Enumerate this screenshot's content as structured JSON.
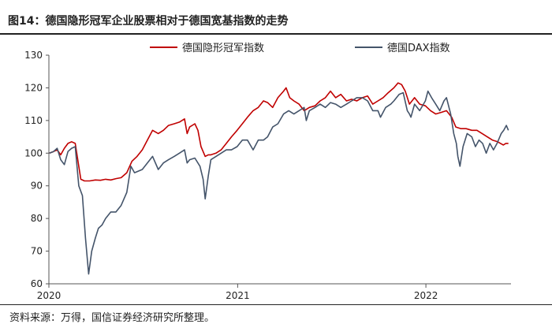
{
  "header": {
    "title": "图14：德国隐形冠军企业股票相对于德国宽基指数的走势"
  },
  "footer": {
    "source": "资料来源：万得，国信证券经济研究所整理。"
  },
  "colors": {
    "series_red": "#c00000",
    "series_dark": "#44546a"
  },
  "chart_data": {
    "type": "line",
    "legend_position": "top",
    "grid": false,
    "x_axis": {
      "type": "date",
      "range": [
        "2020-01-01",
        "2022-06-15"
      ],
      "ticks": [
        {
          "date": "2020-01-01",
          "label": "2020"
        },
        {
          "date": "2021-01-01",
          "label": "2021"
        },
        {
          "date": "2022-01-01",
          "label": "2022"
        }
      ]
    },
    "y_axis": {
      "ylim": [
        60,
        130
      ],
      "ticks": [
        60,
        70,
        80,
        90,
        100,
        110,
        120,
        130
      ]
    },
    "series": [
      {
        "name": "德国隐形冠军指数",
        "color": "#c00000",
        "points": [
          [
            "2020-01-02",
            100
          ],
          [
            "2020-01-10",
            100.5
          ],
          [
            "2020-01-17",
            101
          ],
          [
            "2020-01-24",
            99.5
          ],
          [
            "2020-01-31",
            101.5
          ],
          [
            "2020-02-07",
            103
          ],
          [
            "2020-02-14",
            103.5
          ],
          [
            "2020-02-21",
            103
          ],
          [
            "2020-02-28",
            96
          ],
          [
            "2020-03-03",
            92
          ],
          [
            "2020-03-10",
            91.5
          ],
          [
            "2020-03-20",
            91.5
          ],
          [
            "2020-03-31",
            91.8
          ],
          [
            "2020-04-10",
            91.7
          ],
          [
            "2020-04-20",
            92
          ],
          [
            "2020-04-30",
            91.8
          ],
          [
            "2020-05-10",
            92.2
          ],
          [
            "2020-05-20",
            92.5
          ],
          [
            "2020-05-31",
            94
          ],
          [
            "2020-06-10",
            97.5
          ],
          [
            "2020-06-20",
            99
          ],
          [
            "2020-06-30",
            101
          ],
          [
            "2020-07-10",
            104
          ],
          [
            "2020-07-20",
            107
          ],
          [
            "2020-07-31",
            106
          ],
          [
            "2020-08-10",
            107
          ],
          [
            "2020-08-20",
            108.5
          ],
          [
            "2020-08-31",
            109
          ],
          [
            "2020-09-10",
            109.5
          ],
          [
            "2020-09-20",
            110.5
          ],
          [
            "2020-09-25",
            106
          ],
          [
            "2020-09-30",
            108
          ],
          [
            "2020-10-10",
            109
          ],
          [
            "2020-10-16",
            107
          ],
          [
            "2020-10-22",
            102
          ],
          [
            "2020-10-30",
            99
          ],
          [
            "2020-11-05",
            99.5
          ],
          [
            "2020-11-10",
            99.5
          ],
          [
            "2020-11-20",
            100
          ],
          [
            "2020-11-30",
            101
          ],
          [
            "2020-12-10",
            103
          ],
          [
            "2020-12-20",
            105
          ],
          [
            "2020-12-31",
            107
          ],
          [
            "2021-01-10",
            109
          ],
          [
            "2021-01-20",
            111
          ],
          [
            "2021-01-31",
            113
          ],
          [
            "2021-02-10",
            114
          ],
          [
            "2021-02-20",
            116
          ],
          [
            "2021-02-28",
            115.5
          ],
          [
            "2021-03-10",
            114
          ],
          [
            "2021-03-20",
            117
          ],
          [
            "2021-03-31",
            119
          ],
          [
            "2021-04-05",
            120
          ],
          [
            "2021-04-12",
            117
          ],
          [
            "2021-04-20",
            116
          ],
          [
            "2021-04-30",
            115
          ],
          [
            "2021-05-10",
            113
          ],
          [
            "2021-05-20",
            114
          ],
          [
            "2021-05-31",
            114.5
          ],
          [
            "2021-06-10",
            116
          ],
          [
            "2021-06-20",
            117
          ],
          [
            "2021-06-30",
            119
          ],
          [
            "2021-07-10",
            117
          ],
          [
            "2021-07-20",
            118
          ],
          [
            "2021-07-31",
            116
          ],
          [
            "2021-08-10",
            116.5
          ],
          [
            "2021-08-20",
            116
          ],
          [
            "2021-08-31",
            117
          ],
          [
            "2021-09-10",
            117.5
          ],
          [
            "2021-09-20",
            115
          ],
          [
            "2021-09-30",
            116
          ],
          [
            "2021-10-10",
            117
          ],
          [
            "2021-10-20",
            118.5
          ],
          [
            "2021-10-31",
            120
          ],
          [
            "2021-11-08",
            121.5
          ],
          [
            "2021-11-15",
            121
          ],
          [
            "2021-11-22",
            119
          ],
          [
            "2021-11-30",
            115
          ],
          [
            "2021-12-10",
            117
          ],
          [
            "2021-12-20",
            115
          ],
          [
            "2021-12-31",
            114.5
          ],
          [
            "2022-01-10",
            113
          ],
          [
            "2022-01-20",
            112
          ],
          [
            "2022-01-31",
            112.5
          ],
          [
            "2022-02-10",
            113
          ],
          [
            "2022-02-20",
            111
          ],
          [
            "2022-02-28",
            108
          ],
          [
            "2022-03-10",
            107.5
          ],
          [
            "2022-03-20",
            107.5
          ],
          [
            "2022-03-31",
            107
          ],
          [
            "2022-04-10",
            107
          ],
          [
            "2022-04-20",
            106
          ],
          [
            "2022-04-30",
            105
          ],
          [
            "2022-05-10",
            104
          ],
          [
            "2022-05-20",
            103.5
          ],
          [
            "2022-05-31",
            102.5
          ],
          [
            "2022-06-05",
            103
          ],
          [
            "2022-06-10",
            103
          ]
        ]
      },
      {
        "name": "德国DAX指数",
        "color": "#44546a",
        "points": [
          [
            "2020-01-02",
            100
          ],
          [
            "2020-01-10",
            100.5
          ],
          [
            "2020-01-17",
            101.5
          ],
          [
            "2020-01-24",
            98
          ],
          [
            "2020-01-31",
            96.5
          ],
          [
            "2020-02-07",
            100.5
          ],
          [
            "2020-02-14",
            101.5
          ],
          [
            "2020-02-21",
            102
          ],
          [
            "2020-02-28",
            90
          ],
          [
            "2020-03-06",
            87
          ],
          [
            "2020-03-12",
            74
          ],
          [
            "2020-03-18",
            63
          ],
          [
            "2020-03-24",
            70
          ],
          [
            "2020-03-31",
            74
          ],
          [
            "2020-04-06",
            77
          ],
          [
            "2020-04-13",
            78
          ],
          [
            "2020-04-20",
            80
          ],
          [
            "2020-04-30",
            82
          ],
          [
            "2020-05-10",
            82
          ],
          [
            "2020-05-20",
            84
          ],
          [
            "2020-05-31",
            88
          ],
          [
            "2020-06-08",
            96
          ],
          [
            "2020-06-15",
            94
          ],
          [
            "2020-06-30",
            95
          ],
          [
            "2020-07-10",
            97
          ],
          [
            "2020-07-20",
            99
          ],
          [
            "2020-07-31",
            95
          ],
          [
            "2020-08-10",
            97
          ],
          [
            "2020-08-20",
            98
          ],
          [
            "2020-08-31",
            99
          ],
          [
            "2020-09-10",
            100
          ],
          [
            "2020-09-20",
            101
          ],
          [
            "2020-09-25",
            97
          ],
          [
            "2020-09-30",
            98
          ],
          [
            "2020-10-10",
            98.5
          ],
          [
            "2020-10-20",
            96
          ],
          [
            "2020-10-26",
            92
          ],
          [
            "2020-10-30",
            86
          ],
          [
            "2020-11-05",
            93
          ],
          [
            "2020-11-10",
            98
          ],
          [
            "2020-11-20",
            99
          ],
          [
            "2020-11-30",
            100
          ],
          [
            "2020-12-10",
            101
          ],
          [
            "2020-12-20",
            101
          ],
          [
            "2020-12-31",
            102
          ],
          [
            "2021-01-10",
            104
          ],
          [
            "2021-01-20",
            104
          ],
          [
            "2021-01-31",
            101
          ],
          [
            "2021-02-10",
            104
          ],
          [
            "2021-02-20",
            104
          ],
          [
            "2021-02-28",
            105
          ],
          [
            "2021-03-10",
            108
          ],
          [
            "2021-03-20",
            109
          ],
          [
            "2021-03-31",
            112
          ],
          [
            "2021-04-10",
            113
          ],
          [
            "2021-04-20",
            112
          ],
          [
            "2021-04-30",
            113
          ],
          [
            "2021-05-10",
            114
          ],
          [
            "2021-05-14",
            110
          ],
          [
            "2021-05-20",
            113
          ],
          [
            "2021-05-31",
            114
          ],
          [
            "2021-06-10",
            115
          ],
          [
            "2021-06-20",
            114
          ],
          [
            "2021-06-30",
            115.5
          ],
          [
            "2021-07-10",
            115
          ],
          [
            "2021-07-20",
            114
          ],
          [
            "2021-07-31",
            115
          ],
          [
            "2021-08-10",
            116
          ],
          [
            "2021-08-20",
            117
          ],
          [
            "2021-08-31",
            117
          ],
          [
            "2021-09-10",
            116
          ],
          [
            "2021-09-20",
            113
          ],
          [
            "2021-09-30",
            113
          ],
          [
            "2021-10-05",
            111
          ],
          [
            "2021-10-15",
            114
          ],
          [
            "2021-10-25",
            115
          ],
          [
            "2021-10-31",
            116
          ],
          [
            "2021-11-10",
            118
          ],
          [
            "2021-11-18",
            118.5
          ],
          [
            "2021-11-26",
            113
          ],
          [
            "2021-11-30",
            112
          ],
          [
            "2021-12-03",
            111
          ],
          [
            "2021-12-10",
            115
          ],
          [
            "2021-12-20",
            113
          ],
          [
            "2021-12-31",
            116
          ],
          [
            "2022-01-05",
            119
          ],
          [
            "2022-01-12",
            117
          ],
          [
            "2022-01-20",
            115
          ],
          [
            "2022-01-28",
            113
          ],
          [
            "2022-02-05",
            116
          ],
          [
            "2022-02-10",
            117
          ],
          [
            "2022-02-18",
            112
          ],
          [
            "2022-02-24",
            106
          ],
          [
            "2022-03-01",
            103
          ],
          [
            "2022-03-04",
            99
          ],
          [
            "2022-03-08",
            96
          ],
          [
            "2022-03-14",
            102
          ],
          [
            "2022-03-22",
            106
          ],
          [
            "2022-03-31",
            105
          ],
          [
            "2022-04-07",
            102
          ],
          [
            "2022-04-14",
            104
          ],
          [
            "2022-04-21",
            103
          ],
          [
            "2022-04-28",
            100
          ],
          [
            "2022-05-05",
            103
          ],
          [
            "2022-05-12",
            101
          ],
          [
            "2022-05-19",
            103
          ],
          [
            "2022-05-27",
            106
          ],
          [
            "2022-06-01",
            107
          ],
          [
            "2022-06-06",
            108.5
          ],
          [
            "2022-06-10",
            107
          ]
        ]
      }
    ]
  }
}
